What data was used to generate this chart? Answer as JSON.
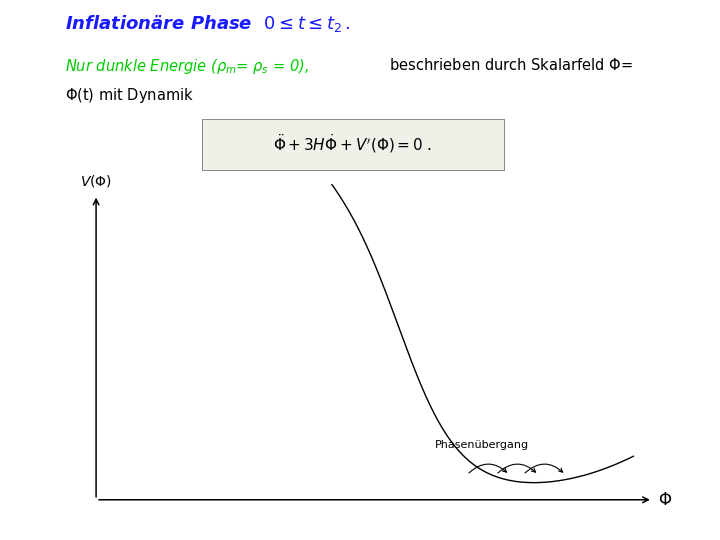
{
  "bg_color": "#ffffff",
  "title_color": "#1a1aff",
  "green_color": "#00cc00",
  "black_color": "#000000",
  "annotation": "Phasenübergang",
  "annotation_fontsize": 8,
  "fig_width": 7.2,
  "fig_height": 5.4,
  "dpi": 100
}
